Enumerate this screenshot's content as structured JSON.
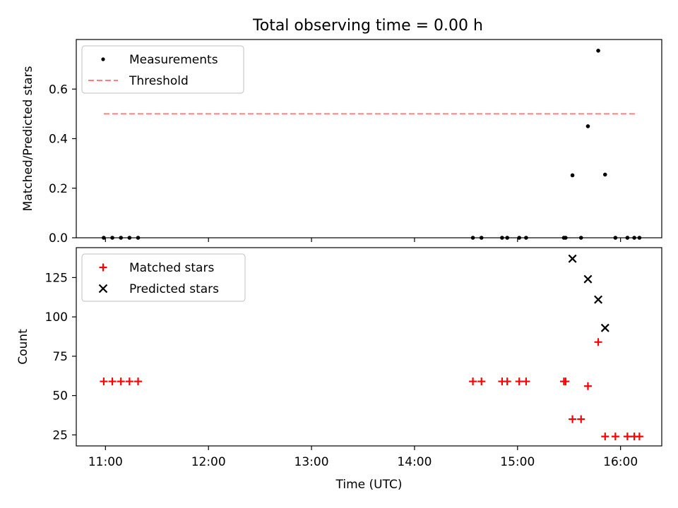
{
  "figure_title": "Total observing time = 0.00 h",
  "chart_data": [
    {
      "type": "scatter",
      "ylabel": "Matched/Predicted stars",
      "xlabel": "",
      "xlim": [
        "10:43",
        "16:24"
      ],
      "ylim": [
        0,
        0.8
      ],
      "x_ticks": [
        "11:00",
        "12:00",
        "13:00",
        "14:00",
        "15:00",
        "16:00"
      ],
      "y_ticks": [
        "0.0",
        "0.2",
        "0.4",
        "0.6"
      ],
      "y_tick_values": [
        0.0,
        0.2,
        0.4,
        0.6
      ],
      "grid": false,
      "legend_position": "upper left",
      "legend": [
        "Measurements",
        "Threshold"
      ],
      "series": [
        {
          "name": "Measurements",
          "kind": "points",
          "color": "#000000",
          "x": [
            "10:59",
            "11:04",
            "11:09",
            "11:14",
            "11:19",
            "14:34",
            "14:39",
            "14:51",
            "14:54",
            "15:01",
            "15:05",
            "15:27",
            "15:28",
            "15:32",
            "15:37",
            "15:41",
            "15:47",
            "15:51",
            "15:57",
            "16:04",
            "16:08",
            "16:11"
          ],
          "y": [
            0,
            0,
            0,
            0,
            0,
            0,
            0,
            0,
            0,
            0,
            0,
            0,
            0,
            0.252,
            0,
            0.45,
            0.755,
            0.255,
            0,
            0,
            0,
            0
          ]
        },
        {
          "name": "Threshold",
          "kind": "hline",
          "color": "#ff7f7f",
          "y": 0.5,
          "x_start": "10:59",
          "x_end": "16:10"
        }
      ]
    },
    {
      "type": "scatter",
      "ylabel": "Count",
      "xlabel": "Time (UTC)",
      "xlim": [
        "10:43",
        "16:24"
      ],
      "ylim": [
        18,
        144
      ],
      "x_ticks": [
        "11:00",
        "12:00",
        "13:00",
        "14:00",
        "15:00",
        "16:00"
      ],
      "y_ticks": [
        "25",
        "50",
        "75",
        "100",
        "125"
      ],
      "y_tick_values": [
        25,
        50,
        75,
        100,
        125
      ],
      "grid": false,
      "legend_position": "upper left",
      "legend": [
        "Matched stars",
        "Predicted stars"
      ],
      "series": [
        {
          "name": "Matched stars",
          "marker": "plus",
          "color": "#ff0000",
          "x": [
            "10:59",
            "11:04",
            "11:09",
            "11:14",
            "11:19",
            "14:34",
            "14:39",
            "14:51",
            "14:54",
            "15:01",
            "15:05",
            "15:27",
            "15:28",
            "15:32",
            "15:37",
            "15:41",
            "15:47",
            "15:51",
            "15:57",
            "16:04",
            "16:08",
            "16:11"
          ],
          "y": [
            59,
            59,
            59,
            59,
            59,
            59,
            59,
            59,
            59,
            59,
            59,
            59,
            59,
            35,
            35,
            56,
            84,
            24,
            24,
            24,
            24,
            24
          ]
        },
        {
          "name": "Predicted stars",
          "marker": "x",
          "color": "#000000",
          "x": [
            "15:32",
            "15:41",
            "15:47",
            "15:51"
          ],
          "y": [
            137,
            124,
            111,
            93
          ]
        }
      ]
    }
  ]
}
